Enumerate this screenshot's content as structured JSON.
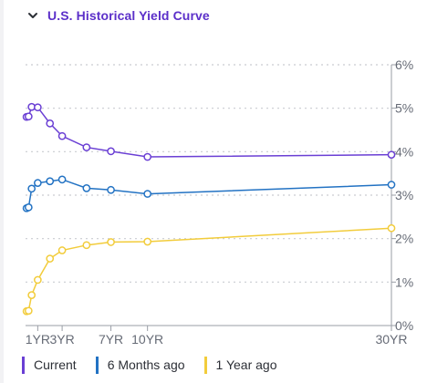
{
  "header": {
    "title": "U.S. Historical Yield Curve",
    "chevron_icon": "chevron-down-icon",
    "accent_color": "#5b2fc9"
  },
  "chart_data": {
    "type": "line",
    "title": "U.S. Historical Yield Curve",
    "xlabel": "",
    "ylabel": "",
    "x_unit": "years to maturity",
    "x_ticks": [
      {
        "value": 1,
        "label": "1YR"
      },
      {
        "value": 3,
        "label": "3YR"
      },
      {
        "value": 7,
        "label": "7YR"
      },
      {
        "value": 10,
        "label": "10YR"
      },
      {
        "value": 30,
        "label": "30YR"
      }
    ],
    "y_ticks": [
      {
        "value": 0,
        "label": "0%"
      },
      {
        "value": 1,
        "label": "1%"
      },
      {
        "value": 2,
        "label": "2%"
      },
      {
        "value": 3,
        "label": "3%"
      },
      {
        "value": 4,
        "label": "4%"
      },
      {
        "value": 5,
        "label": "5%"
      },
      {
        "value": 6,
        "label": "6%"
      }
    ],
    "xlim": [
      0,
      30
    ],
    "ylim": [
      0,
      6
    ],
    "y_axis_position": "right",
    "grid": "horizontal dotted",
    "legend_position": "bottom",
    "series": [
      {
        "name": "Current",
        "color": "#6a3fd4",
        "points": [
          {
            "x": 0.083,
            "y": 4.8
          },
          {
            "x": 0.25,
            "y": 4.81
          },
          {
            "x": 0.5,
            "y": 5.03
          },
          {
            "x": 1,
            "y": 5.02
          },
          {
            "x": 2,
            "y": 4.65
          },
          {
            "x": 3,
            "y": 4.36
          },
          {
            "x": 5,
            "y": 4.1
          },
          {
            "x": 7,
            "y": 4.01
          },
          {
            "x": 10,
            "y": 3.88
          },
          {
            "x": 30,
            "y": 3.93
          }
        ]
      },
      {
        "name": "6 Months ago",
        "color": "#2272c3",
        "points": [
          {
            "x": 0.083,
            "y": 2.7
          },
          {
            "x": 0.25,
            "y": 2.72
          },
          {
            "x": 0.5,
            "y": 3.15
          },
          {
            "x": 1,
            "y": 3.28
          },
          {
            "x": 2,
            "y": 3.32
          },
          {
            "x": 3,
            "y": 3.36
          },
          {
            "x": 5,
            "y": 3.16
          },
          {
            "x": 7,
            "y": 3.12
          },
          {
            "x": 10,
            "y": 3.03
          },
          {
            "x": 30,
            "y": 3.24
          }
        ]
      },
      {
        "name": "1 Year ago",
        "color": "#f2cc3b",
        "points": [
          {
            "x": 0.083,
            "y": 0.33
          },
          {
            "x": 0.25,
            "y": 0.34
          },
          {
            "x": 0.5,
            "y": 0.7
          },
          {
            "x": 1,
            "y": 1.05
          },
          {
            "x": 2,
            "y": 1.54
          },
          {
            "x": 3,
            "y": 1.73
          },
          {
            "x": 5,
            "y": 1.85
          },
          {
            "x": 7,
            "y": 1.92
          },
          {
            "x": 10,
            "y": 1.93
          },
          {
            "x": 30,
            "y": 2.24
          }
        ]
      }
    ]
  }
}
